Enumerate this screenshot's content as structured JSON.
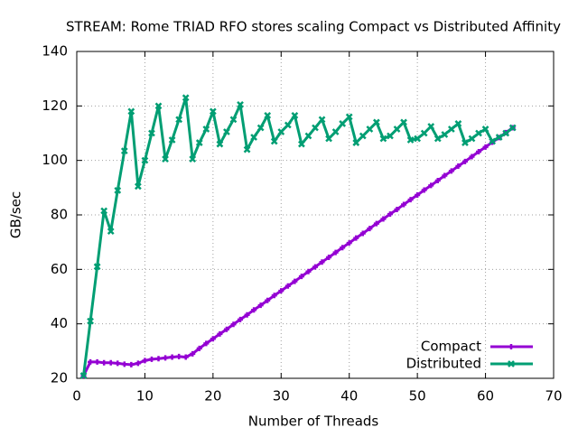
{
  "chart_data": {
    "type": "line",
    "title": "STREAM: Rome TRIAD RFO stores scaling Compact vs Distributed Affinity",
    "x_label": "Number of Threads",
    "y_label": "GB/sec",
    "x": [
      1,
      2,
      3,
      4,
      5,
      6,
      7,
      8,
      9,
      10,
      11,
      12,
      13,
      14,
      15,
      16,
      17,
      18,
      19,
      20,
      21,
      22,
      23,
      24,
      25,
      26,
      27,
      28,
      29,
      30,
      31,
      32,
      33,
      34,
      35,
      36,
      37,
      38,
      39,
      40,
      41,
      42,
      43,
      44,
      45,
      46,
      47,
      48,
      49,
      50,
      51,
      52,
      53,
      54,
      55,
      56,
      57,
      58,
      59,
      60,
      61,
      62,
      63,
      64
    ],
    "series": [
      {
        "name": "Compact",
        "color": "#9400d3",
        "marker": "plus",
        "values": [
          21,
          26,
          26,
          25.7,
          25.7,
          25.5,
          25.2,
          25,
          25.5,
          26.5,
          27,
          27.2,
          27.5,
          27.8,
          28,
          27.8,
          29,
          31,
          32.8,
          34.5,
          36.3,
          38,
          39.8,
          41.6,
          43.3,
          45.1,
          46.8,
          48.6,
          50.4,
          52.1,
          53.9,
          55.6,
          57.4,
          59.2,
          60.9,
          62.7,
          64.4,
          66.2,
          68,
          69.7,
          71.5,
          73.2,
          75,
          76.8,
          78.5,
          80.3,
          82,
          83.8,
          85.6,
          87.3,
          89.1,
          90.8,
          92.6,
          94.4,
          96.1,
          97.9,
          99.6,
          101.4,
          103.2,
          104.9,
          106.7,
          108.4,
          110.2,
          112
        ]
      },
      {
        "name": "Distributed",
        "color": "#009e73",
        "marker": "cross",
        "values": [
          21,
          41,
          61,
          81.5,
          74,
          89,
          103.5,
          118,
          90.5,
          100,
          110,
          120,
          100.5,
          107.5,
          115,
          123,
          100.5,
          106.5,
          111.5,
          118,
          106,
          110.5,
          115,
          120.5,
          104,
          108.5,
          112,
          116.5,
          107,
          110.5,
          113,
          116.5,
          106,
          109,
          112,
          115,
          108,
          110.5,
          113.5,
          116,
          106.5,
          109,
          111.5,
          114,
          108,
          109,
          111.5,
          114,
          107.5,
          108,
          110,
          112.5,
          108,
          109.5,
          111.5,
          113.5,
          106.5,
          108,
          110,
          111.5,
          107,
          108.5,
          110,
          112
        ]
      }
    ],
    "xlim": [
      0,
      70
    ],
    "xticks": [
      0,
      10,
      20,
      30,
      40,
      50,
      60,
      70
    ],
    "ylim": [
      20,
      140
    ],
    "yticks": [
      20,
      40,
      60,
      80,
      100,
      120,
      140
    ],
    "grid": true,
    "legend": "lower right"
  }
}
